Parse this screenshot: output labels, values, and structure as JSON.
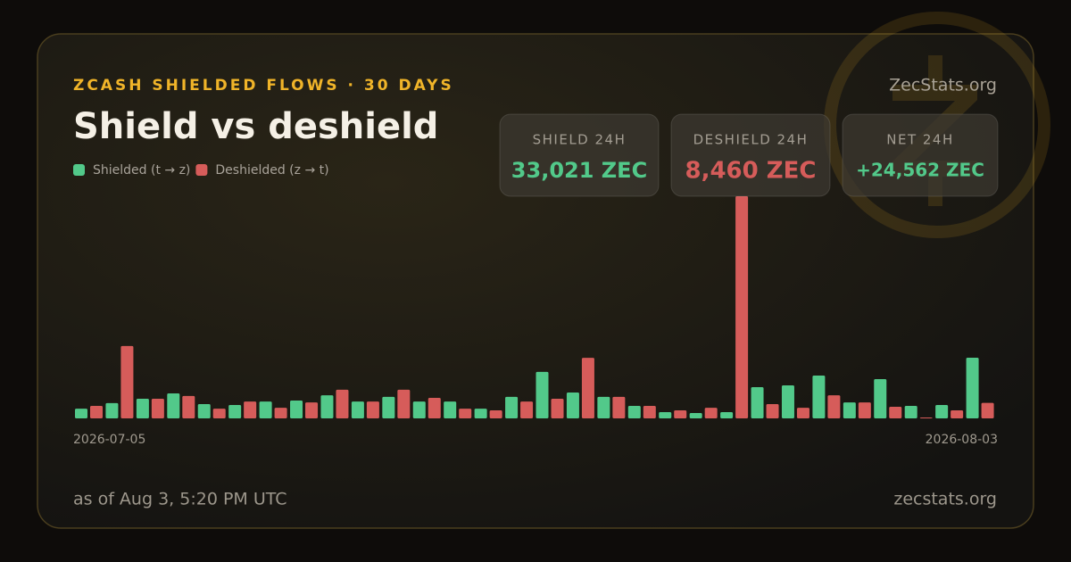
{
  "header": {
    "kicker": "ZCASH SHIELDED FLOWS · 30 DAYS",
    "title": "Shield vs deshield",
    "site": "ZecStats.org"
  },
  "stats": [
    {
      "label": "SHIELD 24H",
      "value": "33,021 ZEC"
    },
    {
      "label": "DESHIELD 24H",
      "value": "8,460 ZEC"
    },
    {
      "label": "NET 24H",
      "value": "+24,562 ZEC"
    }
  ],
  "chart_data": {
    "type": "bar",
    "categories": [
      "2026-07-05",
      null,
      null,
      null,
      null,
      null,
      null,
      null,
      null,
      null,
      null,
      null,
      null,
      null,
      null,
      null,
      null,
      null,
      null,
      null,
      null,
      null,
      null,
      null,
      null,
      null,
      null,
      null,
      null,
      "2026-08-03"
    ],
    "series": [
      {
        "name": "Shielded (t → z)",
        "color": "#52c98a",
        "values": [
          5300,
          8300,
          10700,
          13600,
          7800,
          7300,
          9200,
          9700,
          12600,
          9200,
          11700,
          9200,
          9200,
          5300,
          11700,
          25300,
          14100,
          11700,
          6800,
          3400,
          2900,
          3400,
          17000,
          18000,
          23300,
          8700,
          21400,
          6800,
          7300,
          33021
        ]
      },
      {
        "name": "Deshielded (z → t)",
        "color": "#d65c5a",
        "values": [
          6800,
          39400,
          10700,
          12200,
          5300,
          9200,
          5800,
          8700,
          15600,
          9200,
          15600,
          11200,
          5300,
          4400,
          9200,
          10700,
          33000,
          11700,
          6800,
          4400,
          5800,
          121000,
          7800,
          5800,
          12600,
          8700,
          6300,
          500,
          4400,
          8460
        ]
      }
    ],
    "ylim": [
      0,
      121000
    ]
  },
  "footer": {
    "timestamp": "as of Aug 3, 5:20 PM UTC",
    "site": "zecstats.org"
  }
}
